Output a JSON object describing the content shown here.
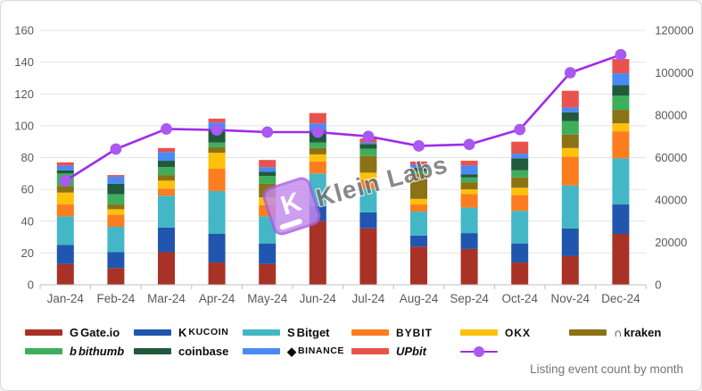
{
  "caption": "Listing event count by month",
  "watermark": {
    "badge_letter": "K",
    "text": "Klein Labs"
  },
  "chart_data": {
    "type": "combo-stacked-bar-line",
    "title": "",
    "categories": [
      "Jan-24",
      "Feb-24",
      "Mar-24",
      "Apr-24",
      "May-24",
      "Jun-24",
      "Jul-24",
      "Aug-24",
      "Sep-24",
      "Oct-24",
      "Nov-24",
      "Dec-24"
    ],
    "left_axis": {
      "label": "",
      "min": 0,
      "max": 160,
      "ticks": [
        0,
        20,
        40,
        60,
        80,
        100,
        120,
        140,
        160
      ]
    },
    "right_axis": {
      "label": "",
      "min": 0,
      "max": 120000,
      "ticks": [
        0,
        20000,
        40000,
        60000,
        80000,
        100000,
        120000
      ]
    },
    "grid": "horizontal",
    "series": [
      {
        "name": "Gate.io",
        "type": "bar",
        "color": "#a93226",
        "values": [
          13,
          10.5,
          20.5,
          14,
          13,
          40,
          35.5,
          24,
          22.5,
          14,
          18,
          32
        ]
      },
      {
        "name": "KuCoin",
        "type": "bar",
        "color": "#2056ae",
        "values": [
          12,
          10,
          15.5,
          18,
          13,
          9.5,
          10,
          7,
          10,
          12,
          17.5,
          18.5
        ]
      },
      {
        "name": "Bitget",
        "type": "bar",
        "color": "#43b7c6",
        "values": [
          18,
          16,
          20,
          27,
          17,
          20.5,
          15,
          15,
          16,
          20.5,
          27,
          29
        ]
      },
      {
        "name": "Bybit",
        "type": "bar",
        "color": "#fb7d20",
        "values": [
          7.5,
          7.5,
          4.5,
          14,
          7,
          7.5,
          5.5,
          4.5,
          8.5,
          10,
          18,
          17
        ]
      },
      {
        "name": "OKX",
        "type": "bar",
        "color": "#ffc10a",
        "values": [
          7.5,
          3.5,
          5,
          10,
          5,
          4.5,
          4.5,
          3.5,
          3,
          4.5,
          5.5,
          5
        ]
      },
      {
        "name": "Kraken",
        "type": "bar",
        "color": "#8b7215",
        "values": [
          4,
          3,
          3.5,
          3.5,
          8.5,
          4,
          10.5,
          16,
          4.5,
          6.5,
          8.5,
          8.5
        ]
      },
      {
        "name": "Bithumb",
        "type": "bar",
        "color": "#3eae5c",
        "values": [
          8,
          6.5,
          5,
          3,
          5,
          3.5,
          4.5,
          1.5,
          3,
          4.5,
          8.5,
          9
        ]
      },
      {
        "name": "Coinbase",
        "type": "bar",
        "color": "#20593b",
        "values": [
          2,
          6.5,
          4,
          7.5,
          2.5,
          7.5,
          3,
          2,
          2,
          7.5,
          5.5,
          6.5
        ]
      },
      {
        "name": "Binance",
        "type": "bar",
        "color": "#4a8af4",
        "values": [
          3,
          4.5,
          5.5,
          5,
          3,
          4.5,
          1,
          2,
          5.5,
          3,
          3,
          7.5
        ]
      },
      {
        "name": "Upbit",
        "type": "bar",
        "color": "#e8534b",
        "values": [
          2,
          1,
          2.5,
          2.5,
          4.5,
          6.5,
          2.5,
          2,
          3,
          7.5,
          10.5,
          9
        ]
      },
      {
        "name": "Listing event count",
        "type": "line",
        "axis": "right",
        "color": "#9f2beb",
        "marker_color": "#a958f2",
        "values": [
          49000,
          64000,
          73500,
          73000,
          72000,
          72000,
          70000,
          65500,
          66200,
          73200,
          100000,
          108500
        ]
      }
    ]
  },
  "legend": {
    "rows": [
      {
        "items": [
          {
            "id": "gateio",
            "label": "Gate.io",
            "glyph": "G",
            "style": "",
            "color": "#a93226"
          },
          {
            "id": "kucoin",
            "label": "KUCOIN",
            "glyph": "K",
            "style": "caps",
            "color": "#2056ae"
          },
          {
            "id": "bitget",
            "label": "Bitget",
            "glyph": "S",
            "style": "",
            "color": "#43b7c6"
          },
          {
            "id": "bybit",
            "label": "BYBIT",
            "glyph": "",
            "style": "wide",
            "color": "#fb7d20"
          },
          {
            "id": "okx",
            "label": "OKX",
            "glyph": "",
            "style": "wide",
            "color": "#ffc10a"
          },
          {
            "id": "kraken",
            "label": "kraken",
            "glyph": "∩",
            "style": "",
            "color": "#8b7215"
          }
        ]
      },
      {
        "items": [
          {
            "id": "bithumb",
            "label": "bithumb",
            "glyph": "b",
            "style": "italic",
            "color": "#3eae5c"
          },
          {
            "id": "coinbase",
            "label": "coinbase",
            "glyph": "",
            "style": "",
            "color": "#20593b"
          },
          {
            "id": "binance",
            "label": "BINANCE",
            "glyph": "◆",
            "style": "caps",
            "color": "#4a8af4"
          },
          {
            "id": "upbit",
            "label": "UPbit",
            "glyph": "",
            "style": "italic",
            "color": "#e8534b"
          },
          {
            "id": "line-series",
            "label": "",
            "glyph": "line",
            "style": "",
            "color": "#9f2beb"
          }
        ]
      }
    ]
  }
}
